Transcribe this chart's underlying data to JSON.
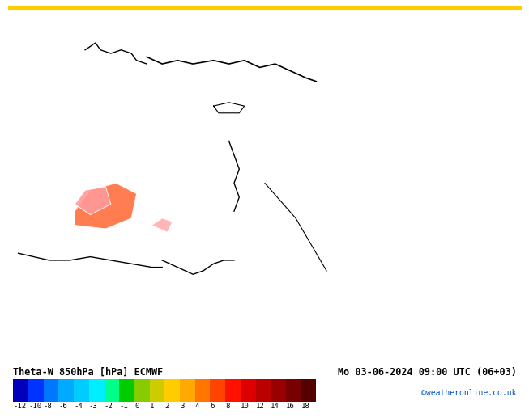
{
  "title_left": "Theta-W 850hPa [hPa] ECMWF",
  "title_right": "Mo 03-06-2024 09:00 UTC (06+03)",
  "credit": "©weatheronline.co.uk",
  "colorbar_values": [
    -12,
    -10,
    -8,
    -6,
    -4,
    -3,
    -2,
    -1,
    0,
    1,
    2,
    3,
    4,
    6,
    8,
    10,
    12,
    14,
    16,
    18
  ],
  "colorbar_colors": [
    "#0000bb",
    "#0033ff",
    "#0077ff",
    "#00aaff",
    "#00ccff",
    "#00eeff",
    "#00ff88",
    "#00cc00",
    "#88cc00",
    "#cccc00",
    "#ffcc00",
    "#ffaa00",
    "#ff7700",
    "#ff4400",
    "#ff1100",
    "#dd0000",
    "#bb0000",
    "#990000",
    "#770000",
    "#550000"
  ],
  "top_border_color": "#ffcc00",
  "map_bg": "#cc0000",
  "fig_width": 6.34,
  "fig_height": 4.9,
  "title_fontsize": 8.5,
  "credit_fontsize": 7,
  "colorbar_label_fontsize": 6.5,
  "bottom_bar_height": 0.115
}
